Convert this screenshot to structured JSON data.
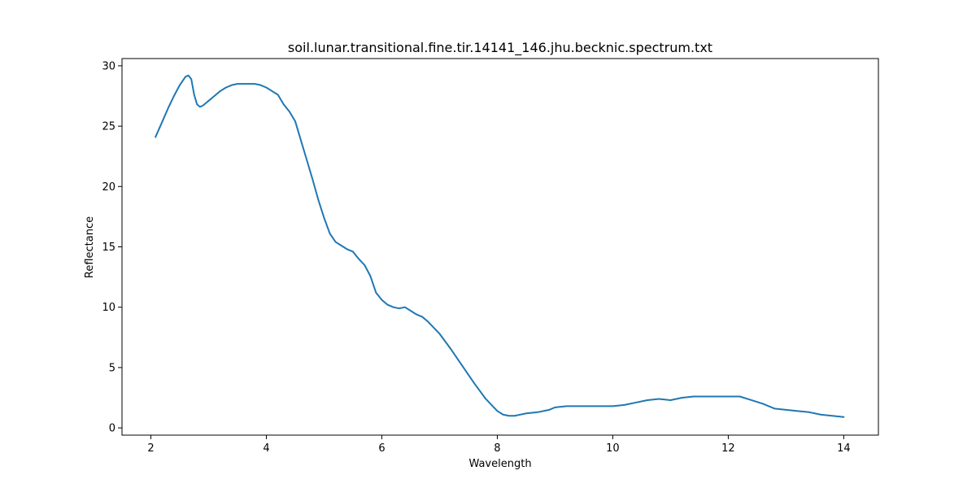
{
  "chart_data": {
    "type": "line",
    "title": "soil.lunar.transitional.fine.tir.14141_146.jhu.becknic.spectrum.txt",
    "xlabel": "Wavelength",
    "ylabel": "Reflectance",
    "xlim": [
      1.5,
      14.6
    ],
    "ylim": [
      -0.6,
      30.6
    ],
    "xticks": [
      2,
      4,
      6,
      8,
      10,
      12,
      14
    ],
    "yticks": [
      0,
      5,
      10,
      15,
      20,
      25,
      30
    ],
    "grid": false,
    "legend": "none",
    "series": [
      {
        "color": "#1f77b4",
        "x": [
          2.08,
          2.2,
          2.3,
          2.4,
          2.5,
          2.6,
          2.65,
          2.7,
          2.75,
          2.8,
          2.85,
          2.9,
          3.0,
          3.1,
          3.2,
          3.3,
          3.4,
          3.5,
          3.6,
          3.7,
          3.8,
          3.9,
          4.0,
          4.1,
          4.2,
          4.3,
          4.4,
          4.5,
          4.6,
          4.7,
          4.8,
          4.9,
          5.0,
          5.1,
          5.2,
          5.3,
          5.4,
          5.5,
          5.6,
          5.7,
          5.8,
          5.9,
          6.0,
          6.1,
          6.2,
          6.3,
          6.4,
          6.5,
          6.6,
          6.7,
          6.8,
          6.9,
          7.0,
          7.2,
          7.4,
          7.6,
          7.8,
          8.0,
          8.1,
          8.2,
          8.3,
          8.5,
          8.7,
          8.9,
          9.0,
          9.2,
          9.5,
          9.8,
          10.0,
          10.2,
          10.4,
          10.6,
          10.8,
          11.0,
          11.2,
          11.4,
          11.6,
          11.8,
          12.0,
          12.2,
          12.4,
          12.6,
          12.8,
          13.0,
          13.2,
          13.4,
          13.6,
          13.8,
          14.0
        ],
        "y": [
          24.1,
          25.4,
          26.5,
          27.5,
          28.4,
          29.1,
          29.2,
          28.9,
          27.6,
          26.8,
          26.6,
          26.7,
          27.1,
          27.5,
          27.9,
          28.2,
          28.4,
          28.5,
          28.5,
          28.5,
          28.5,
          28.4,
          28.2,
          27.9,
          27.6,
          26.8,
          26.2,
          25.4,
          23.8,
          22.2,
          20.6,
          18.9,
          17.4,
          16.1,
          15.4,
          15.1,
          14.8,
          14.6,
          14.0,
          13.5,
          12.6,
          11.2,
          10.6,
          10.2,
          10.0,
          9.9,
          10.0,
          9.7,
          9.4,
          9.2,
          8.8,
          8.3,
          7.8,
          6.5,
          5.1,
          3.7,
          2.4,
          1.4,
          1.1,
          1.0,
          1.0,
          1.2,
          1.3,
          1.5,
          1.7,
          1.8,
          1.8,
          1.8,
          1.8,
          1.9,
          2.1,
          2.3,
          2.4,
          2.3,
          2.5,
          2.6,
          2.6,
          2.6,
          2.6,
          2.6,
          2.3,
          2.0,
          1.6,
          1.5,
          1.4,
          1.3,
          1.1,
          1.0,
          0.9
        ]
      }
    ]
  }
}
